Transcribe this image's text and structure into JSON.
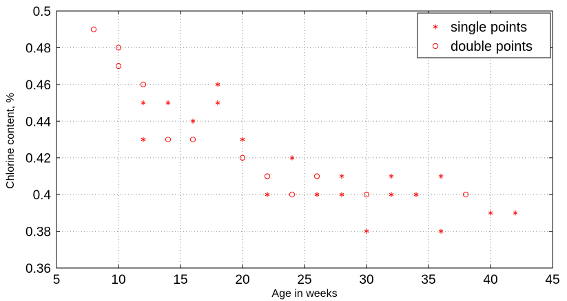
{
  "chart_data": {
    "type": "scatter",
    "xlabel": "Age in weeks",
    "ylabel": "Chlorine content, %",
    "xlim": [
      5,
      45
    ],
    "ylim": [
      0.36,
      0.5
    ],
    "xticks": [
      5,
      10,
      15,
      20,
      25,
      30,
      35,
      40,
      45
    ],
    "yticks": [
      0.36,
      0.38,
      0.4,
      0.42,
      0.44,
      0.46,
      0.48,
      0.5
    ],
    "xtick_labels": [
      "5",
      "10",
      "15",
      "20",
      "25",
      "30",
      "35",
      "40",
      "45"
    ],
    "ytick_labels": [
      "0.36",
      "0.38",
      "0.4",
      "0.42",
      "0.44",
      "0.46",
      "0.48",
      "0.5"
    ],
    "grid": true,
    "legend_position": "top-right",
    "color": "#ff0000",
    "series": [
      {
        "name": "single points",
        "marker": "asterisk",
        "points": [
          [
            12,
            0.45
          ],
          [
            12,
            0.43
          ],
          [
            14,
            0.45
          ],
          [
            16,
            0.44
          ],
          [
            18,
            0.46
          ],
          [
            18,
            0.45
          ],
          [
            20,
            0.43
          ],
          [
            22,
            0.4
          ],
          [
            24,
            0.42
          ],
          [
            26,
            0.4
          ],
          [
            28,
            0.41
          ],
          [
            28,
            0.4
          ],
          [
            30,
            0.38
          ],
          [
            32,
            0.41
          ],
          [
            32,
            0.4
          ],
          [
            34,
            0.4
          ],
          [
            36,
            0.41
          ],
          [
            36,
            0.38
          ],
          [
            40,
            0.39
          ],
          [
            42,
            0.39
          ]
        ]
      },
      {
        "name": "double points",
        "marker": "circle",
        "points": [
          [
            8,
            0.49
          ],
          [
            10,
            0.48
          ],
          [
            10,
            0.47
          ],
          [
            12,
            0.46
          ],
          [
            14,
            0.43
          ],
          [
            16,
            0.43
          ],
          [
            20,
            0.42
          ],
          [
            22,
            0.41
          ],
          [
            24,
            0.4
          ],
          [
            26,
            0.41
          ],
          [
            30,
            0.4
          ],
          [
            38,
            0.4
          ]
        ]
      }
    ]
  }
}
